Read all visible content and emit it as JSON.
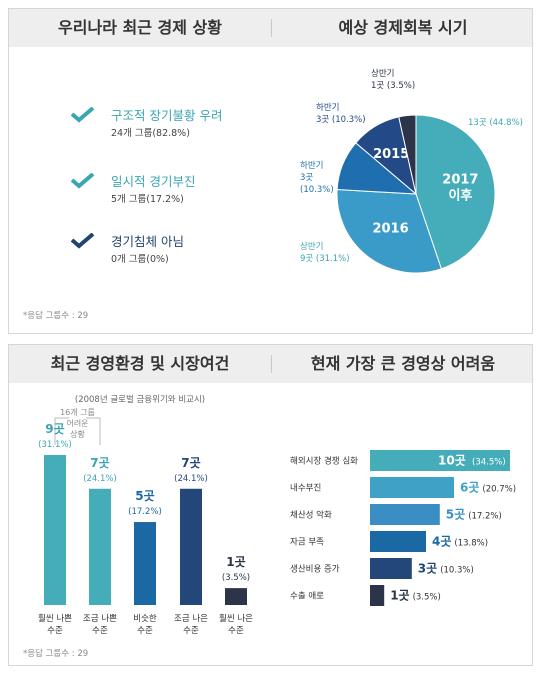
{
  "top_panel": {
    "left_title": "우리나라 최근 경제 상황",
    "right_title": "예상 경제회복 시기",
    "checklist": [
      {
        "label": "구조적 장기불황 우려",
        "detail": "24개 그룹(82.8%)",
        "color": "#3aa6b2"
      },
      {
        "label": "일시적 경기부진",
        "detail": "5개 그룹(17.2%)",
        "color": "#3aa6b2"
      },
      {
        "label": "경기침체 아님",
        "detail": "0개 그룹(0%)",
        "color": "#23446f"
      }
    ],
    "note": "*응답 그룹수 : 29"
  },
  "bottom_panel": {
    "left_title": "최근 경영환경 및 시장여건",
    "right_title": "현재 가장 큰 경영상 어려움",
    "bar_subtitle": "(2008년 글로벌 금융위기와 비교시)",
    "bracket_label": [
      "16개 그룹",
      "어려운",
      "상황"
    ],
    "note": "*응답 그룹수 : 29"
  },
  "colors": {
    "teal": "#45adb9",
    "mid_blue": "#2d8ec0",
    "blue": "#1a69a5",
    "navy": "#24477a",
    "dark": "#2b3448",
    "header_bg": "#eeeeee"
  },
  "chart_data": [
    {
      "type": "pie",
      "title": "예상 경제회복 시기",
      "slices": [
        {
          "name": "2017 이후",
          "value": 44.8,
          "count": 13,
          "label": "13곳 (44.8%)",
          "color": "#45adb9",
          "inner_label": [
            "2017",
            "이후"
          ]
        },
        {
          "name": "2016 상반기",
          "value": 31.1,
          "count": 9,
          "label": [
            "상반기",
            "9곳 (31.1%)"
          ],
          "color": "#3a9bc8",
          "inner_label": [
            "2016"
          ]
        },
        {
          "name": "2016 하반기",
          "value": 10.3,
          "count": 3,
          "label": [
            "하반기",
            "3곳",
            "(10.3%)"
          ],
          "color": "#1f6fb0",
          "inner_label": []
        },
        {
          "name": "2015 하반기",
          "value": 10.3,
          "count": 3,
          "label": [
            "하반기",
            "3곳 (10.3%)"
          ],
          "color": "#234a86",
          "inner_label": [
            "2015"
          ]
        },
        {
          "name": "2015 상반기",
          "value": 3.5,
          "count": 1,
          "label": [
            "상반기",
            "1곳 (3.5%)"
          ],
          "color": "#2b3448",
          "inner_label": []
        }
      ]
    },
    {
      "type": "bar",
      "title": "최근 경영환경 및 시장여건",
      "subtitle": "(2008년 글로벌 금융위기와 비교시)",
      "categories": [
        [
          "훨씬 나쁜",
          "수준"
        ],
        [
          "조금 나쁜",
          "수준"
        ],
        [
          "비슷한",
          "수준"
        ],
        [
          "조금 나은",
          "수준"
        ],
        [
          "훨씬 나은",
          "수준"
        ]
      ],
      "values": [
        31.1,
        24.1,
        17.2,
        24.1,
        3.5
      ],
      "counts": [
        "9곳",
        "7곳",
        "5곳",
        "7곳",
        "1곳"
      ],
      "pct_labels": [
        "(31.1%)",
        "(24.1%)",
        "(17.2%)",
        "(24.1%)",
        "(3.5%)"
      ],
      "colors": [
        "#45adb9",
        "#45adb9",
        "#1a69a5",
        "#24477a",
        "#2b3448"
      ],
      "label_colors": [
        "#3aa6b2",
        "#3aa6b2",
        "#1a69a5",
        "#24477a",
        "#2b3448"
      ]
    },
    {
      "type": "bar",
      "orientation": "horizontal",
      "title": "현재 가장 큰 경영상 어려움",
      "categories": [
        "해외시장 경쟁 심화",
        "내수부진",
        "채산성 악화",
        "자금 부족",
        "생산비용 증가",
        "수출 애로"
      ],
      "values": [
        34.5,
        20.7,
        17.2,
        13.8,
        10.3,
        3.5
      ],
      "counts": [
        "10곳",
        "6곳",
        "5곳",
        "4곳",
        "3곳",
        "1곳"
      ],
      "pct_labels": [
        "(34.5%)",
        "(20.7%)",
        "(17.2%)",
        "(13.8%)",
        "(10.3%)",
        "(3.5%)"
      ],
      "colors": [
        "#45adb9",
        "#3fa1c6",
        "#3a8ec4",
        "#1a69a5",
        "#24477a",
        "#2b3448"
      ]
    }
  ]
}
